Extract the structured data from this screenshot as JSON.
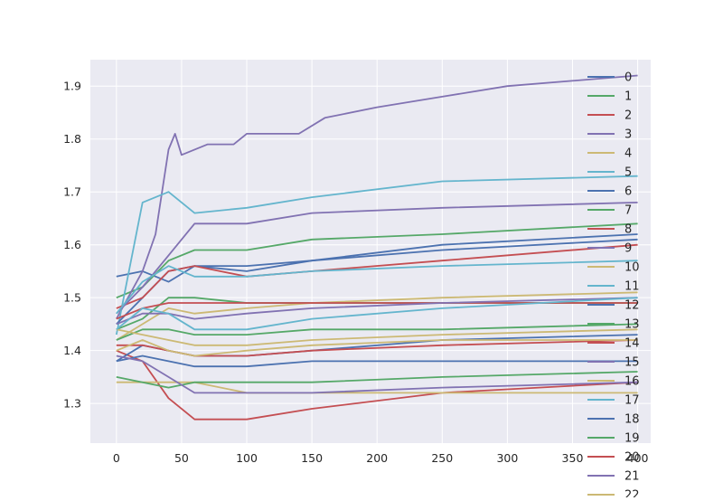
{
  "chart_data": {
    "type": "line",
    "title": "",
    "xlabel": "",
    "ylabel": "",
    "xlim": [
      -20,
      410
    ],
    "ylim": [
      1.225,
      1.95
    ],
    "xticks": [
      0,
      50,
      100,
      150,
      200,
      250,
      300,
      350,
      400
    ],
    "yticks": [
      1.3,
      1.4,
      1.5,
      1.6,
      1.7,
      1.8,
      1.9
    ],
    "xtick_labels": [
      "0",
      "50",
      "100",
      "150",
      "200",
      "250",
      "300",
      "350",
      "400"
    ],
    "ytick_labels": [
      "1.3",
      "1.4",
      "1.5",
      "1.6",
      "1.7",
      "1.8",
      "1.9"
    ],
    "grid": true,
    "legend_position": "right",
    "colors": {
      "background": "#eaeaf2",
      "grid": "#ffffff",
      "palette": [
        "#4c72b0",
        "#55a868",
        "#c44e52",
        "#8172b2",
        "#ccb974",
        "#64b5cd"
      ]
    },
    "series": [
      {
        "name": "0",
        "x": [
          0,
          20,
          40,
          60,
          100,
          150,
          250,
          400
        ],
        "values": [
          1.54,
          1.55,
          1.53,
          1.56,
          1.55,
          1.57,
          1.6,
          1.62
        ]
      },
      {
        "name": "1",
        "x": [
          0,
          20,
          40,
          60,
          100,
          150,
          250,
          400
        ],
        "values": [
          1.5,
          1.52,
          1.57,
          1.59,
          1.59,
          1.61,
          1.62,
          1.64
        ]
      },
      {
        "name": "2",
        "x": [
          0,
          20,
          40,
          60,
          100,
          150,
          250,
          400
        ],
        "values": [
          1.4,
          1.38,
          1.31,
          1.27,
          1.27,
          1.29,
          1.32,
          1.34
        ]
      },
      {
        "name": "3",
        "x": [
          0,
          20,
          30,
          40,
          45,
          50,
          70,
          90,
          100,
          140,
          160,
          200,
          250,
          300,
          400
        ],
        "values": [
          1.46,
          1.55,
          1.62,
          1.78,
          1.81,
          1.77,
          1.79,
          1.79,
          1.81,
          1.81,
          1.84,
          1.86,
          1.88,
          1.9,
          1.92
        ]
      },
      {
        "name": "4",
        "x": [
          0,
          20,
          40,
          60,
          100,
          150,
          250,
          400
        ],
        "values": [
          1.34,
          1.34,
          1.34,
          1.34,
          1.32,
          1.32,
          1.32,
          1.32
        ]
      },
      {
        "name": "5",
        "x": [
          0,
          20,
          40,
          60,
          100,
          150,
          250,
          400
        ],
        "values": [
          1.43,
          1.68,
          1.7,
          1.66,
          1.67,
          1.69,
          1.72,
          1.73
        ]
      },
      {
        "name": "6",
        "x": [
          0,
          20,
          40,
          60,
          100,
          150,
          250,
          400
        ],
        "values": [
          1.45,
          1.5,
          1.55,
          1.56,
          1.56,
          1.57,
          1.59,
          1.61
        ]
      },
      {
        "name": "7",
        "x": [
          0,
          20,
          40,
          60,
          100,
          150,
          250,
          400
        ],
        "values": [
          1.44,
          1.46,
          1.5,
          1.5,
          1.49,
          1.49,
          1.49,
          1.49
        ]
      },
      {
        "name": "8",
        "x": [
          0,
          20,
          40,
          60,
          100,
          150,
          250,
          400
        ],
        "values": [
          1.48,
          1.5,
          1.55,
          1.56,
          1.54,
          1.55,
          1.57,
          1.6
        ]
      },
      {
        "name": "9",
        "x": [
          0,
          20,
          40,
          60,
          100,
          150,
          250,
          400
        ],
        "values": [
          1.47,
          1.52,
          1.58,
          1.64,
          1.64,
          1.66,
          1.67,
          1.68
        ]
      },
      {
        "name": "10",
        "x": [
          0,
          20,
          40,
          60,
          100,
          150,
          250,
          400
        ],
        "values": [
          1.42,
          1.45,
          1.48,
          1.47,
          1.48,
          1.49,
          1.5,
          1.51
        ]
      },
      {
        "name": "11",
        "x": [
          0,
          20,
          40,
          60,
          100,
          150,
          250,
          400
        ],
        "values": [
          1.47,
          1.53,
          1.56,
          1.54,
          1.54,
          1.55,
          1.56,
          1.57
        ]
      },
      {
        "name": "12",
        "x": [
          0,
          20,
          40,
          60,
          100,
          150,
          250,
          400
        ],
        "values": [
          1.38,
          1.39,
          1.38,
          1.37,
          1.37,
          1.38,
          1.38,
          1.38
        ]
      },
      {
        "name": "13",
        "x": [
          0,
          20,
          40,
          60,
          100,
          150,
          250,
          400
        ],
        "values": [
          1.42,
          1.44,
          1.44,
          1.43,
          1.43,
          1.44,
          1.44,
          1.45
        ]
      },
      {
        "name": "14",
        "x": [
          0,
          20,
          40,
          60,
          100,
          150,
          250,
          400
        ],
        "values": [
          1.46,
          1.48,
          1.49,
          1.49,
          1.49,
          1.49,
          1.49,
          1.49
        ]
      },
      {
        "name": "15",
        "x": [
          0,
          20,
          40,
          60,
          100,
          150,
          250,
          400
        ],
        "values": [
          1.45,
          1.47,
          1.47,
          1.46,
          1.47,
          1.48,
          1.49,
          1.5
        ]
      },
      {
        "name": "16",
        "x": [
          0,
          20,
          40,
          60,
          100,
          150,
          250,
          400
        ],
        "values": [
          1.44,
          1.43,
          1.42,
          1.41,
          1.41,
          1.42,
          1.43,
          1.44
        ]
      },
      {
        "name": "17",
        "x": [
          0,
          20,
          40,
          60,
          100,
          150,
          250,
          400
        ],
        "values": [
          1.44,
          1.48,
          1.47,
          1.44,
          1.44,
          1.46,
          1.48,
          1.5
        ]
      },
      {
        "name": "18",
        "x": [
          0,
          20,
          40,
          60,
          100,
          150,
          250,
          400
        ],
        "values": [
          1.38,
          1.41,
          1.4,
          1.39,
          1.39,
          1.4,
          1.42,
          1.43
        ]
      },
      {
        "name": "19",
        "x": [
          0,
          20,
          40,
          60,
          100,
          150,
          250,
          400
        ],
        "values": [
          1.35,
          1.34,
          1.33,
          1.34,
          1.34,
          1.34,
          1.35,
          1.36
        ]
      },
      {
        "name": "20",
        "x": [
          0,
          20,
          40,
          60,
          100,
          150,
          250,
          400
        ],
        "values": [
          1.41,
          1.41,
          1.4,
          1.39,
          1.39,
          1.4,
          1.41,
          1.42
        ]
      },
      {
        "name": "21",
        "x": [
          0,
          20,
          40,
          60,
          100,
          150,
          250,
          400
        ],
        "values": [
          1.39,
          1.38,
          1.35,
          1.32,
          1.32,
          1.32,
          1.33,
          1.34
        ]
      },
      {
        "name": "22",
        "x": [
          0,
          20,
          40,
          60,
          100,
          150,
          250,
          400
        ],
        "values": [
          1.4,
          1.42,
          1.4,
          1.39,
          1.4,
          1.41,
          1.42,
          1.42
        ]
      }
    ]
  }
}
